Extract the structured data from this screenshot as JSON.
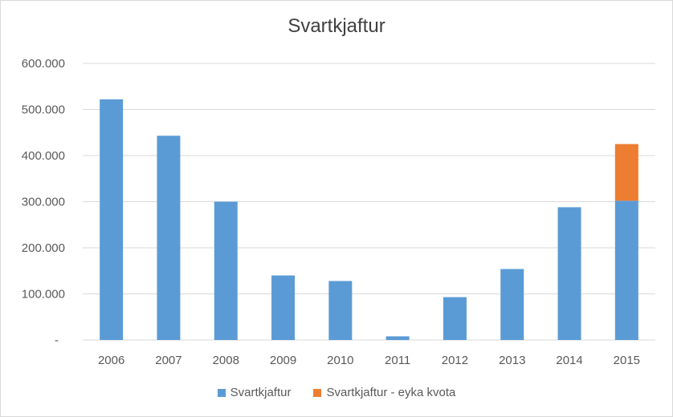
{
  "chart_data": {
    "type": "bar",
    "stacked": true,
    "title": "Svartkjaftur",
    "xlabel": "",
    "ylabel": "",
    "categories": [
      "2006",
      "2007",
      "2008",
      "2009",
      "2010",
      "2011",
      "2012",
      "2013",
      "2014",
      "2015"
    ],
    "series": [
      {
        "name": "Svartkjaftur",
        "color": "#5b9bd5",
        "values": [
          522000,
          443000,
          300000,
          140000,
          128000,
          8000,
          93000,
          154000,
          288000,
          302000
        ]
      },
      {
        "name": "Svartkjaftur - eyka kvota",
        "color": "#ed7d31",
        "values": [
          0,
          0,
          0,
          0,
          0,
          0,
          0,
          0,
          0,
          123000
        ]
      }
    ],
    "ylim": [
      0,
      600000
    ],
    "yticks": [
      0,
      100000,
      200000,
      300000,
      400000,
      500000,
      600000
    ],
    "ytick_labels": [
      "-",
      "100.000",
      "200.000",
      "300.000",
      "400.000",
      "500.000",
      "600.000"
    ],
    "grid": true,
    "legend_position": "bottom"
  }
}
